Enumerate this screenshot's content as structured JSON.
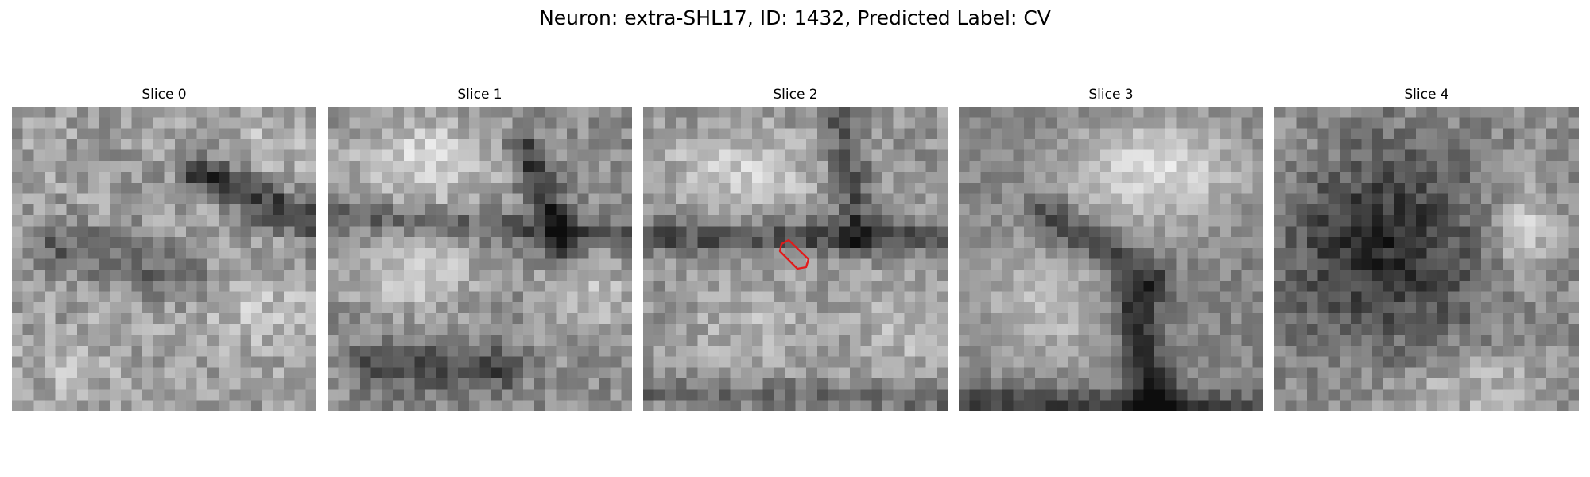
{
  "figure": {
    "title": "Neuron: extra-SHL17, ID: 1432, Predicted Label: CV"
  },
  "panels": [
    {
      "title": "Slice 0",
      "highlight": false
    },
    {
      "title": "Slice 1",
      "highlight": false
    },
    {
      "title": "Slice 2",
      "highlight": true
    },
    {
      "title": "Slice 3",
      "highlight": false
    },
    {
      "title": "Slice 4",
      "highlight": false
    }
  ],
  "style": {
    "highlight_color": "#e11b1b",
    "colormap": "grayscale"
  }
}
